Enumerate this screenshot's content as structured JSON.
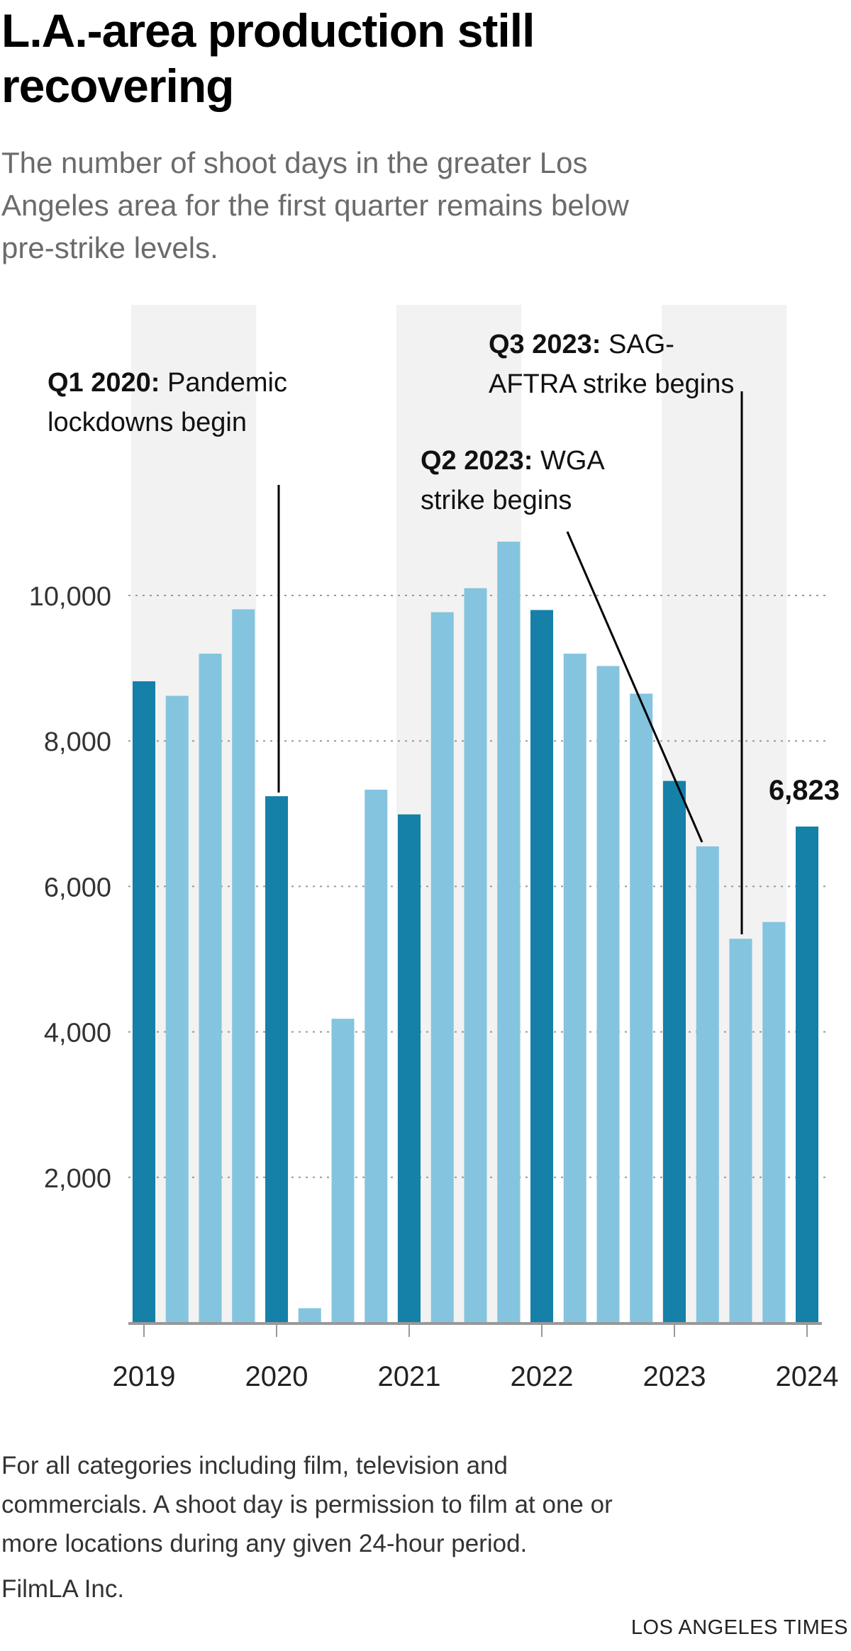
{
  "header": {
    "title_lines": [
      "L.A.-area production still",
      "recovering"
    ],
    "subtitle_lines": [
      "The number of shoot days in the greater Los",
      "Angeles area for the first quarter remains below",
      "pre-strike levels."
    ]
  },
  "colors": {
    "q1_bar": "#1580a8",
    "other_bar": "#84c4df",
    "band": "#f2f2f2",
    "grid": "#999999",
    "axis": "#999999"
  },
  "chart_data": {
    "type": "bar",
    "title": "L.A.-area production still recovering",
    "categories": [
      "Q1 2019",
      "Q2 2019",
      "Q3 2019",
      "Q4 2019",
      "Q1 2020",
      "Q2 2020",
      "Q3 2020",
      "Q4 2020",
      "Q1 2021",
      "Q2 2021",
      "Q3 2021",
      "Q4 2021",
      "Q1 2022",
      "Q2 2022",
      "Q3 2022",
      "Q4 2022",
      "Q1 2023",
      "Q2 2023",
      "Q3 2023",
      "Q4 2023",
      "Q1 2024"
    ],
    "values": [
      8820,
      8620,
      9200,
      9810,
      7240,
      200,
      4180,
      7330,
      6990,
      9770,
      10100,
      10740,
      9800,
      9200,
      9030,
      8650,
      7450,
      6550,
      5280,
      5510,
      6823
    ],
    "highlight": "Q1 bars in dark blue; other quarters in light blue; alternating years shaded",
    "ylim": [
      0,
      11000
    ],
    "y_ticks": [
      2000,
      4000,
      6000,
      8000,
      10000
    ],
    "y_tick_labels": [
      "2,000",
      "4,000",
      "6,000",
      "8,000",
      "10,000"
    ],
    "x_tick_labels": [
      "2019",
      "2020",
      "2021",
      "2022",
      "2023",
      "2024"
    ],
    "shaded_years": [
      "2019",
      "2021",
      "2023"
    ],
    "grid": true,
    "data_labels": [
      {
        "category": "Q1 2024",
        "text": "6,823"
      }
    ],
    "annotations": [
      {
        "category": "Q1 2020",
        "bold": "Q1 2020:",
        "lines": [
          "Pandemic",
          "lockdowns begin"
        ]
      },
      {
        "category": "Q2 2023",
        "bold": "Q2 2023:",
        "lines": [
          "WGA",
          "strike begins"
        ]
      },
      {
        "category": "Q3 2023",
        "bold": "Q3 2023:",
        "lines": [
          "SAG-",
          "AFTRA strike begins"
        ]
      }
    ]
  },
  "footer": {
    "note_lines": [
      "For all categories including film, television and",
      "commercials. A shoot day is permission to film at one or",
      "more locations during any given 24-hour period."
    ],
    "source": "FilmLA Inc.",
    "credit": "LOS ANGELES TIMES"
  }
}
